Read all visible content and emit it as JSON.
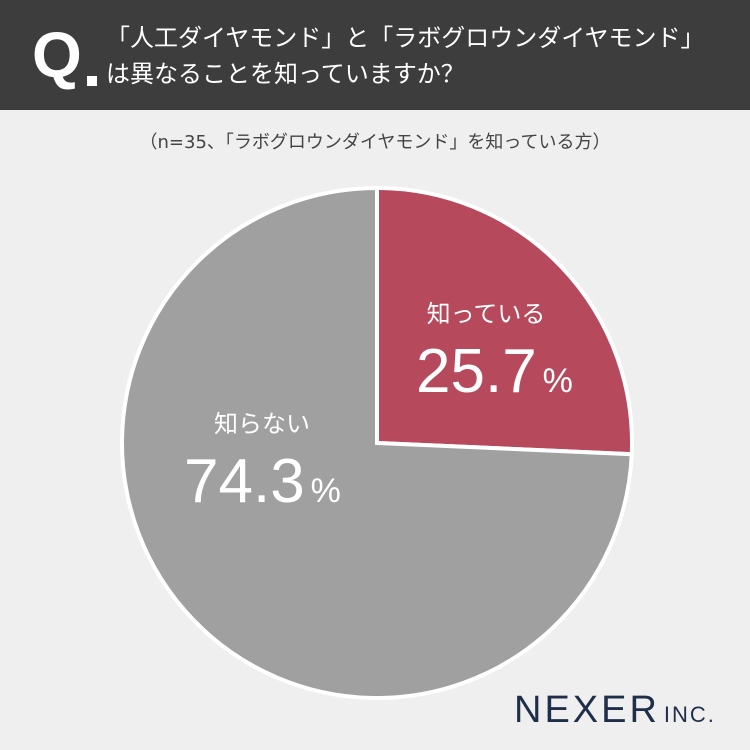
{
  "header": {
    "q_label": "Q",
    "question_lines": [
      "「人工ダイヤモンド」と「ラボグロウンダイヤモンド」",
      "は異なることを知っていますか？"
    ]
  },
  "note": "（n=35、「ラボグロウンダイヤモンド」を知っている方）",
  "chart_data": {
    "type": "pie",
    "title": "「人工ダイヤモンド」と「ラボグロウンダイヤモンド」は異なることを知っていますか？",
    "subtitle": "（n=35、「ラボグロウンダイヤモンド」を知っている方）",
    "slices": [
      {
        "label": "知っている",
        "value": 25.7,
        "display": "25.7",
        "unit": "%",
        "color": "#b7495c"
      },
      {
        "label": "知らない",
        "value": 74.3,
        "display": "74.3",
        "unit": "%",
        "color": "#a0a0a0"
      }
    ],
    "start_angle": "12 o'clock, clockwise",
    "separator_color": "#ffffff"
  },
  "footer": {
    "logo_main": "NEXER",
    "logo_sub": "INC.",
    "logo_color": "#1f2f4a"
  },
  "colors": {
    "background": "#efefef",
    "header_bg": "#3d3d3d"
  }
}
